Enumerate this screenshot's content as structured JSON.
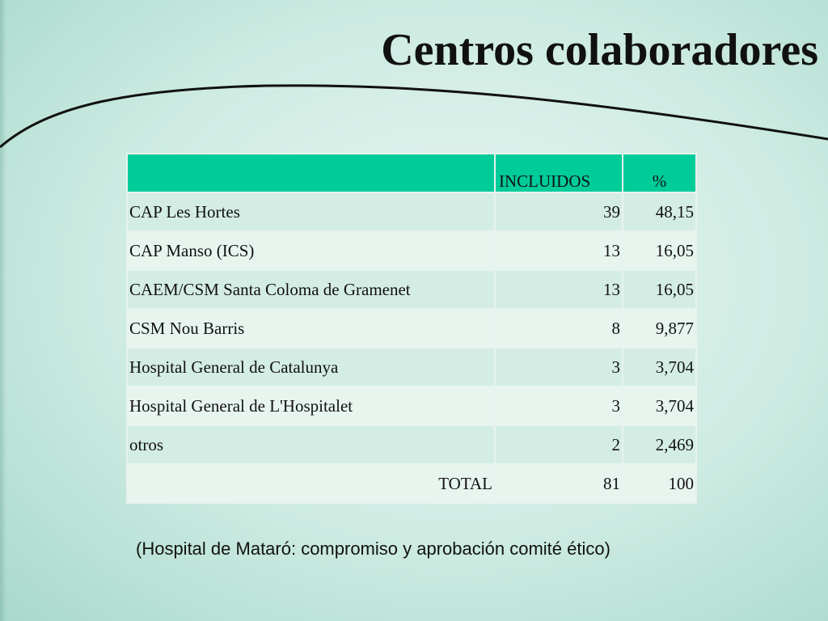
{
  "title": "Centros colaboradores",
  "table": {
    "headers": [
      "",
      "INCLUIDOS",
      "%"
    ],
    "rows": [
      {
        "name": "CAP Les Hortes",
        "incluidos": "39",
        "pct": "48,15"
      },
      {
        "name": "CAP Manso (ICS)",
        "incluidos": "13",
        "pct": "16,05"
      },
      {
        "name": "CAEM/CSM Santa Coloma de Gramenet",
        "incluidos": "13",
        "pct": "16,05"
      },
      {
        "name": "CSM Nou Barris",
        "incluidos": "8",
        "pct": "9,877"
      },
      {
        "name": "Hospital General de Catalunya",
        "incluidos": "3",
        "pct": "3,704"
      },
      {
        "name": "Hospital General de L'Hospitalet",
        "incluidos": "3",
        "pct": "3,704"
      },
      {
        "name": "otros",
        "incluidos": "2",
        "pct": "2,469"
      },
      {
        "name": "TOTAL",
        "incluidos": "81",
        "pct": "100"
      }
    ]
  },
  "note": "(Hospital de Mataró: compromiso y aprobación comité ético)",
  "colors": {
    "header_fill": "#00cc99",
    "row_fill_a": "#d4ede4",
    "row_fill_b": "#e8f5ef"
  }
}
